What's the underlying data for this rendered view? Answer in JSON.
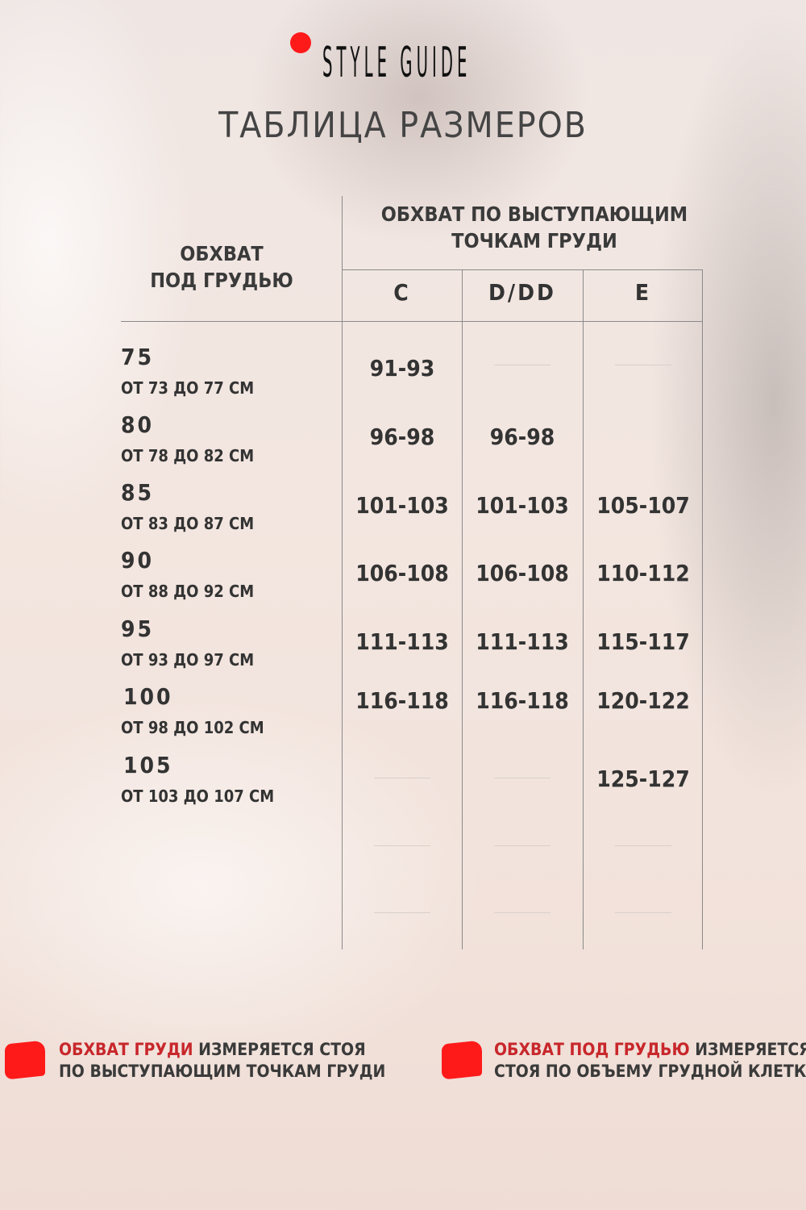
{
  "brand": {
    "name": "STYLE GUIDE",
    "dot_color": "#ff1a1a"
  },
  "title": "ТАБЛИЦА РАЗМЕРОВ",
  "table": {
    "row_header": "ОБХВАТ\nПОД ГРУДЬЮ",
    "col_group_header": "ОБХВАТ ПО ВЫСТУПАЮЩИМ\nТОЧКАМ ГРУДИ",
    "columns": [
      "C",
      "D/DD",
      "E"
    ],
    "rows": [
      {
        "size": "75",
        "range": "ОТ 73 ДО 77 СМ",
        "values": [
          "91-93",
          "",
          ""
        ]
      },
      {
        "size": "80",
        "range": "ОТ 78 ДО 82 СМ",
        "values": [
          "96-98",
          "96-98",
          ""
        ]
      },
      {
        "size": "85",
        "range": "ОТ 83 ДО 87 СМ",
        "values": [
          "101-103",
          "101-103",
          "105-107"
        ]
      },
      {
        "size": "90",
        "range": "ОТ 88 ДО 92 СМ",
        "values": [
          "106-108",
          "106-108",
          "110-112"
        ]
      },
      {
        "size": "95",
        "range": "ОТ 93 ДО 97 СМ",
        "values": [
          "111-113",
          "111-113",
          "115-117"
        ]
      },
      {
        "size": "100",
        "range": "ОТ 98 ДО 102 СМ",
        "values": [
          "116-118",
          "116-118",
          "120-122"
        ]
      },
      {
        "size": "105",
        "range": "ОТ 103 ДО 107 СМ",
        "values": [
          "",
          "",
          "125-127"
        ]
      }
    ]
  },
  "notes": [
    {
      "highlight": "ОБХВАТ ГРУДИ",
      "text1": " ИЗМЕРЯЕТСЯ СТОЯ",
      "text2": "ПО ВЫСТУПАЮЩИМ ТОЧКАМ ГРУДИ"
    },
    {
      "highlight": "ОБХВАТ ПОД ГРУДЬЮ",
      "text1": " ИЗМЕРЯЕТСЯ",
      "text2": "СТОЯ ПО ОБЪЕМУ ГРУДНОЙ КЛЕТКИ"
    }
  ],
  "colors": {
    "accent": "#ff1a1a",
    "highlight_text": "#c8272b"
  }
}
